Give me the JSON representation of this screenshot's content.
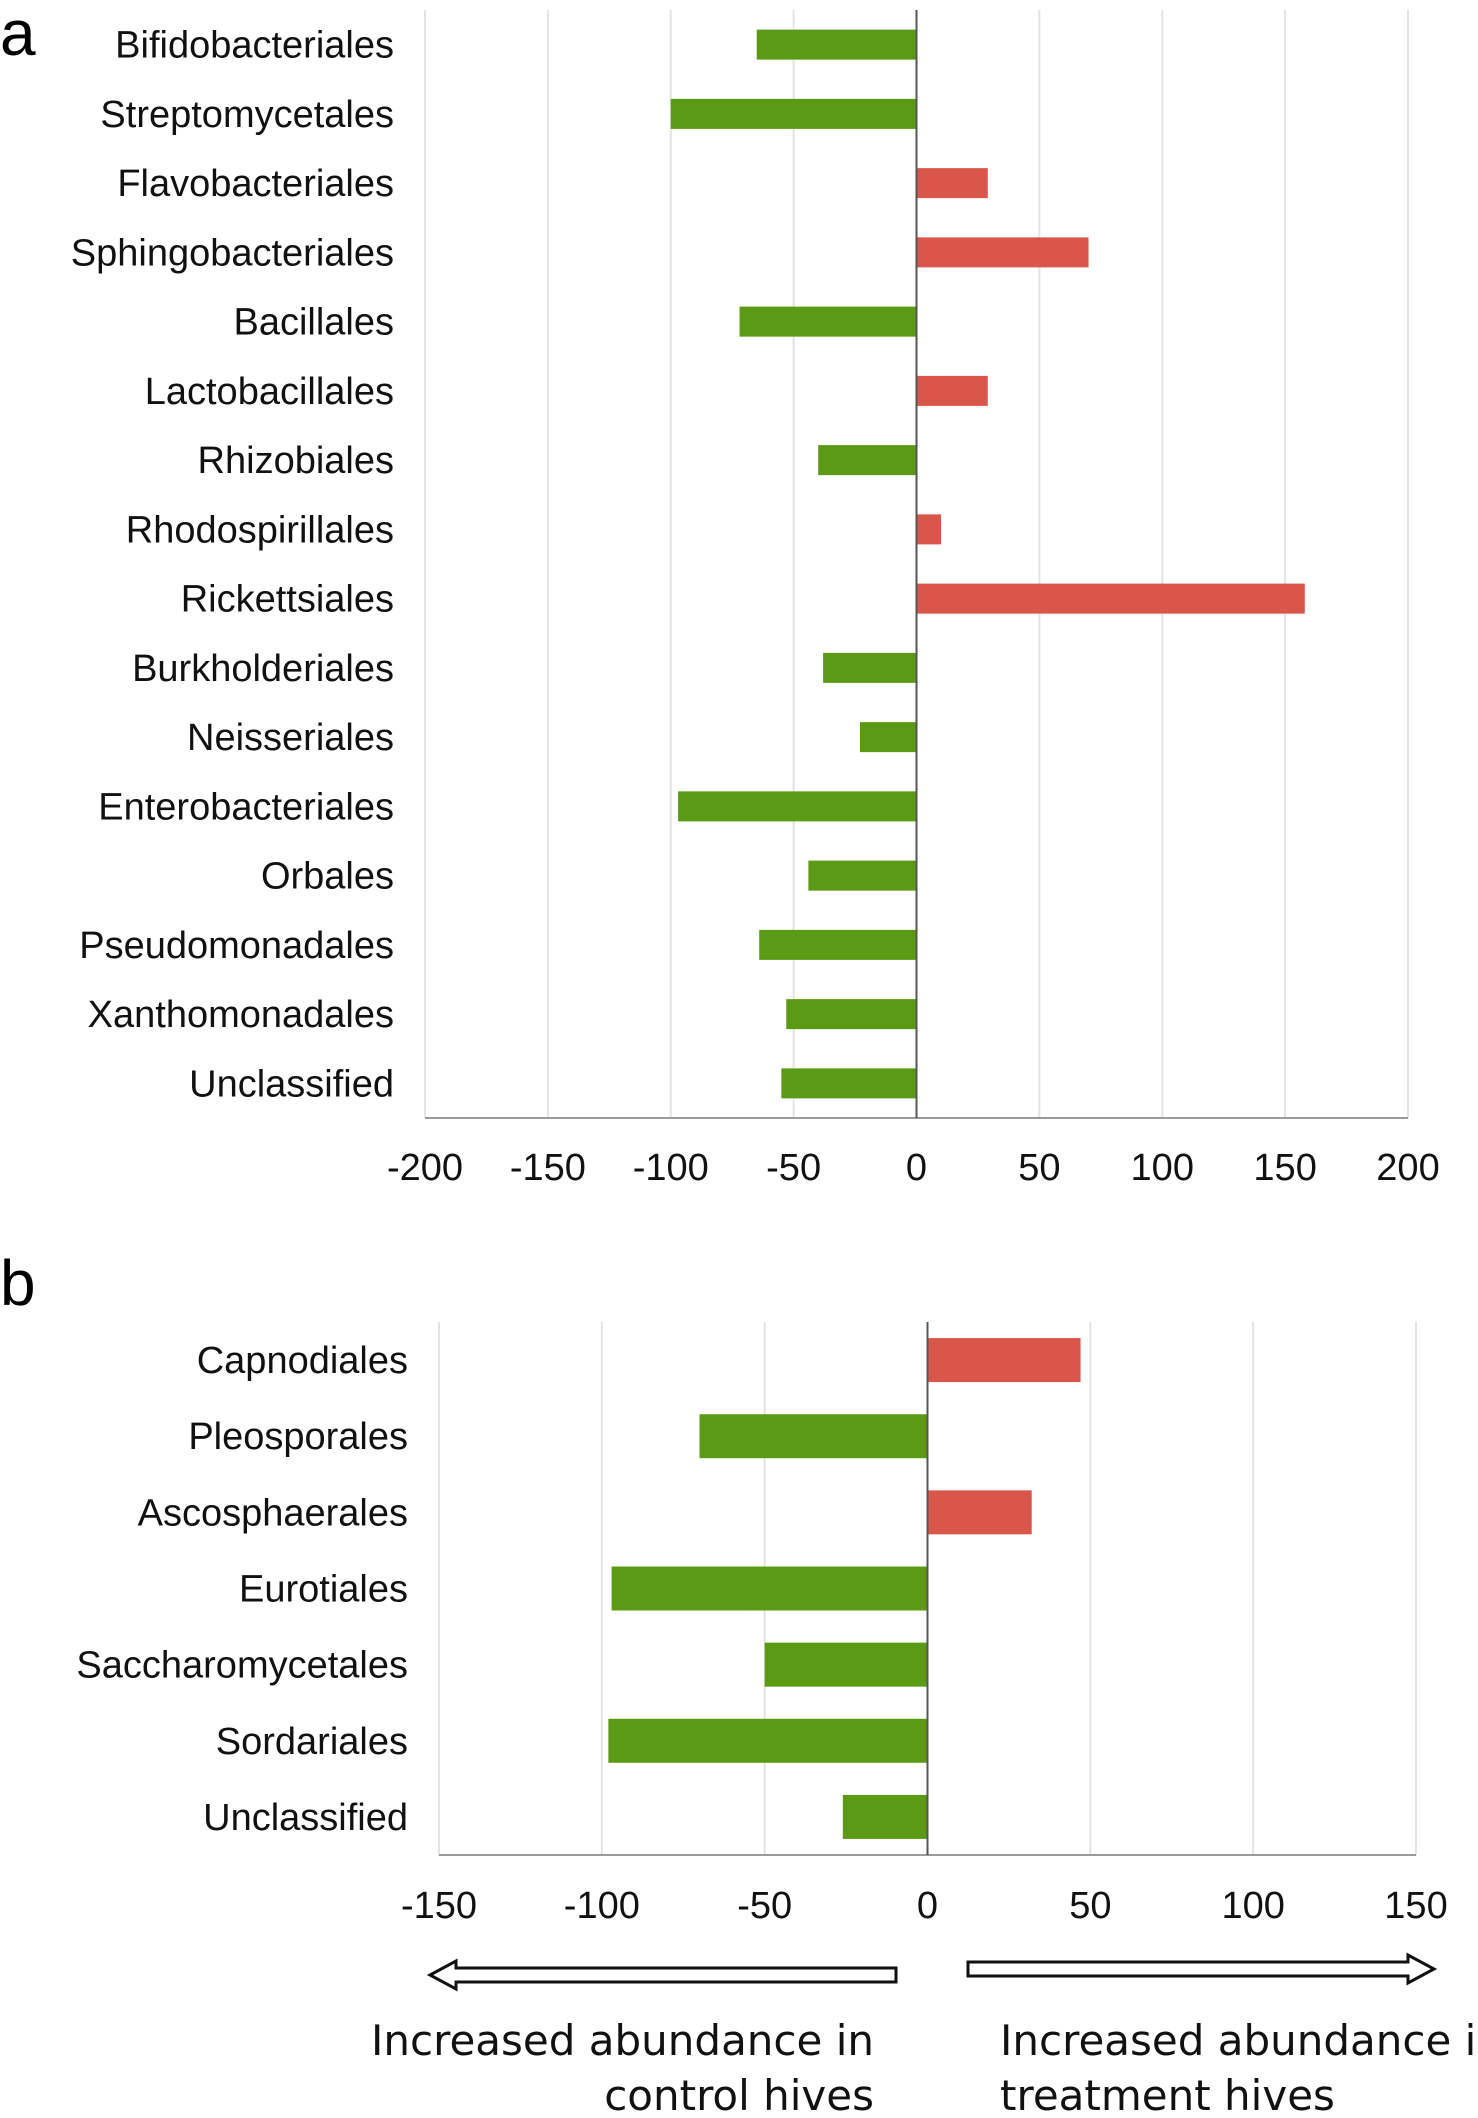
{
  "colors": {
    "positive": "#d9564a",
    "negative": "#5a9a14"
  },
  "chart_data": [
    {
      "panel": "a",
      "type": "bar",
      "orientation": "horizontal",
      "categories": [
        "Bifidobacteriales",
        "Streptomycetales",
        "Flavobacteriales",
        "Sphingobacteriales",
        "Bacillales",
        "Lactobacillales",
        "Rhizobiales",
        "Rhodospirillales",
        "Rickettsiales",
        "Burkholderiales",
        "Neisseriales",
        "Enterobacteriales",
        "Orbales",
        "Pseudomonadales",
        "Xanthomonadales",
        "Unclassified"
      ],
      "values": [
        -65,
        -100,
        29,
        70,
        -72,
        29,
        -40,
        10,
        158,
        -38,
        -23,
        -97,
        -44,
        -64,
        -53,
        -55
      ],
      "xlim": [
        -200,
        200
      ],
      "xticks": [
        -200,
        -150,
        -100,
        -50,
        0,
        50,
        100,
        150,
        200
      ],
      "grid": true
    },
    {
      "panel": "b",
      "type": "bar",
      "orientation": "horizontal",
      "categories": [
        "Capnodiales",
        "Pleosporales",
        "Ascosphaerales",
        "Eurotiales",
        "Saccharomycetales",
        "Sordariales",
        "Unclassified"
      ],
      "values": [
        47,
        -70,
        32,
        -97,
        -50,
        -98,
        -26
      ],
      "xlim": [
        -150,
        150
      ],
      "xticks": [
        -150,
        -100,
        -50,
        0,
        50,
        100,
        150
      ],
      "grid": true
    }
  ],
  "annotations": {
    "left_arrow_text": [
      "Increased abundance in",
      "control hives"
    ],
    "right_arrow_text": [
      "Increased abundance in",
      "treatment hives"
    ]
  }
}
